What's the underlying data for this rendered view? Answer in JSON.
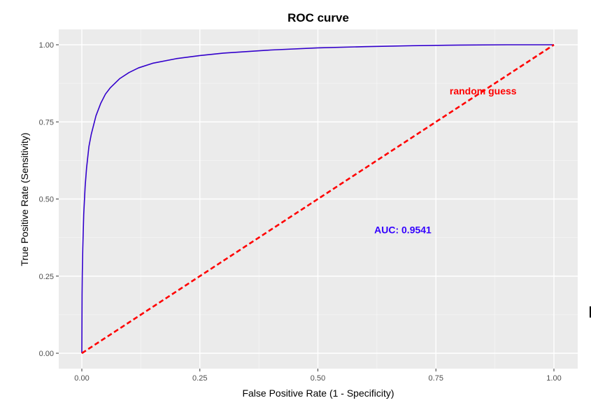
{
  "chart_data": {
    "type": "line",
    "title": "ROC curve",
    "xlabel": "False Positive Rate (1 - Specificity)",
    "ylabel": "True Positive Rate (Sensitivity)",
    "xlim": [
      0,
      1
    ],
    "ylim": [
      0,
      1
    ],
    "x_ticks": [
      "0.00",
      "0.25",
      "0.50",
      "0.75",
      "1.00"
    ],
    "y_ticks": [
      "0.00",
      "0.25",
      "0.50",
      "0.75",
      "1.00"
    ],
    "grid": true,
    "legend": "none",
    "series": [
      {
        "color": "#3300cc",
        "line": "solid",
        "x": [
          0,
          0.0005,
          0.001,
          0.002,
          0.004,
          0.007,
          0.01,
          0.015,
          0.02,
          0.03,
          0.04,
          0.05,
          0.06,
          0.08,
          0.1,
          0.12,
          0.15,
          0.2,
          0.25,
          0.3,
          0.4,
          0.5,
          0.6,
          0.7,
          0.8,
          0.9,
          1.0
        ],
        "y": [
          0,
          0.19,
          0.26,
          0.34,
          0.45,
          0.54,
          0.6,
          0.67,
          0.71,
          0.77,
          0.81,
          0.84,
          0.86,
          0.89,
          0.91,
          0.925,
          0.94,
          0.955,
          0.965,
          0.973,
          0.983,
          0.99,
          0.994,
          0.997,
          0.999,
          1.0,
          1.0
        ]
      },
      {
        "color": "#ff0000",
        "line": "dashed",
        "x": [
          0,
          1
        ],
        "y": [
          0,
          1
        ]
      }
    ],
    "annotations": [
      {
        "text": "random guess",
        "x": 0.85,
        "y": 0.85,
        "color": "#ff0000"
      },
      {
        "text": "AUC:  0.9541",
        "x": 0.68,
        "y": 0.4,
        "color": "#3300ff"
      }
    ]
  }
}
